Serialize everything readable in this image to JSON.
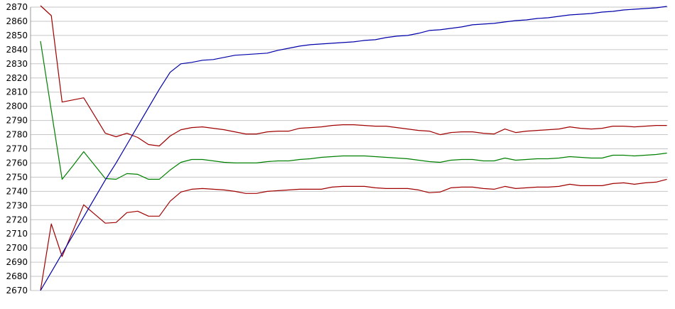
{
  "chart_data": {
    "type": "line",
    "title": "",
    "xlabel": "",
    "ylabel": "",
    "grid": "horizontal",
    "legend": "none",
    "background_color": "#ffffff",
    "gridline_color": "#c6c6c6",
    "axis_line_color": "#999999",
    "label_color": "#000000",
    "x_axis": {
      "labels_visible": false,
      "num_points": 59
    },
    "y_axis": {
      "min": 2670,
      "max": 2870,
      "tick_step": 10,
      "tick_labels": [
        "2870",
        "2860",
        "2850",
        "2840",
        "2830",
        "2820",
        "2810",
        "2800",
        "2790",
        "2780",
        "2770",
        "2760",
        "2750",
        "2740",
        "2730",
        "2720",
        "2710",
        "2700",
        "2690",
        "2680",
        "2670"
      ]
    },
    "layout": {
      "plot_left": 43,
      "plot_right": 940,
      "grid_top_y": 10,
      "grid_bottom_y": 409,
      "series_x_start": 57,
      "series_x_step": 15.2
    },
    "series": [
      {
        "name": "lower-red-line",
        "color": "#a00000",
        "values": [
          2670,
          2717,
          2694,
          2712,
          2730.5,
          2724,
          2717.5,
          2718,
          2725,
          2726,
          2722.5,
          2722.5,
          2733,
          2739.5,
          2741.5,
          2742,
          2741.5,
          2741,
          2740,
          2738.5,
          2738.5,
          2740,
          2740.5,
          2741,
          2741.5,
          2741.5,
          2741.5,
          2743,
          2743.5,
          2743.5,
          2743.5,
          2742.5,
          2742,
          2742,
          2742,
          2741,
          2739,
          2739.5,
          2742.5,
          2743,
          2743,
          2742,
          2741.5,
          2743.5,
          2742,
          2742.5,
          2743,
          2743,
          2743.5,
          2745,
          2744,
          2744,
          2744,
          2745.5,
          2746,
          2745,
          2746,
          2746.5,
          2748.5
        ]
      },
      {
        "name": "green-line",
        "color": "#008000",
        "values": [
          2846,
          2797,
          2748.5,
          2758,
          2768,
          2758.5,
          2749,
          2748.5,
          2752.5,
          2752,
          2748.5,
          2748.5,
          2755,
          2760.5,
          2762.5,
          2762.5,
          2761.5,
          2760.5,
          2760,
          2760,
          2760,
          2761,
          2761.5,
          2761.5,
          2762.5,
          2763,
          2764,
          2764.5,
          2765,
          2765,
          2765,
          2764.5,
          2764,
          2763.5,
          2763,
          2762,
          2761,
          2760.5,
          2762,
          2762.5,
          2762.5,
          2761.5,
          2761.5,
          2763.5,
          2762,
          2762.5,
          2763,
          2763,
          2763.5,
          2764.5,
          2764,
          2763.5,
          2763.5,
          2765.5,
          2765.5,
          2765,
          2765.5,
          2766,
          2767
        ]
      },
      {
        "name": "upper-red-line",
        "color": "#a00000",
        "values": [
          2871,
          2864,
          2803,
          2804.5,
          2806,
          2793.5,
          2781,
          2778.5,
          2781,
          2778,
          2773,
          2772,
          2779,
          2783.5,
          2785,
          2785.5,
          2784.5,
          2783.5,
          2782,
          2780.5,
          2780.5,
          2782,
          2782.5,
          2782.5,
          2784.5,
          2785,
          2785.5,
          2786.5,
          2787,
          2787,
          2786.5,
          2786,
          2786,
          2785,
          2784,
          2783,
          2782.5,
          2780,
          2781.5,
          2782,
          2782,
          2781,
          2780.5,
          2784,
          2781.5,
          2782.5,
          2783,
          2783.5,
          2784,
          2785.5,
          2784.5,
          2784,
          2784.5,
          2786,
          2786,
          2785.5,
          2786,
          2786.5,
          2786.5
        ]
      },
      {
        "name": "blue-line",
        "color": "#0000aa",
        "values": [
          2670,
          2683,
          2696,
          2709,
          2722,
          2735,
          2748,
          2760,
          2773,
          2786,
          2799,
          2812,
          2824,
          2830,
          2831,
          2832.5,
          2833,
          2834.5,
          2836,
          2836.5,
          2837,
          2837.5,
          2839.5,
          2841,
          2842.5,
          2843.5,
          2844,
          2844.5,
          2845,
          2845.5,
          2846.5,
          2847,
          2848.5,
          2849.5,
          2850,
          2851.5,
          2853.5,
          2854,
          2855,
          2856,
          2857.5,
          2858,
          2858.5,
          2859.5,
          2860.5,
          2861,
          2862,
          2862.5,
          2863.5,
          2864.5,
          2865,
          2865.5,
          2866.5,
          2867,
          2868,
          2868.5,
          2869,
          2869.5,
          2870.5
        ]
      }
    ]
  }
}
